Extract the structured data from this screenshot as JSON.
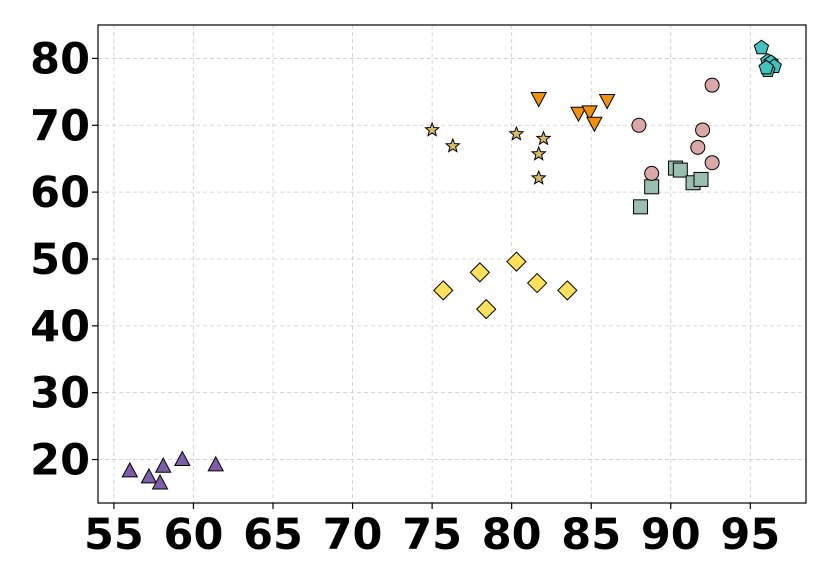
{
  "chart_data": {
    "type": "scatter",
    "title": "",
    "xlabel": "",
    "ylabel": "",
    "xlim": [
      54,
      98.5
    ],
    "ylim": [
      13.5,
      85
    ],
    "grid": true,
    "legend": "none",
    "xticks": [
      55,
      60,
      65,
      70,
      75,
      80,
      85,
      90,
      95
    ],
    "yticks": [
      20,
      30,
      40,
      50,
      60,
      70,
      80
    ],
    "xtick_labels": [
      "55",
      "60",
      "65",
      "70",
      "75",
      "80",
      "85",
      "90",
      "95"
    ],
    "ytick_labels": [
      "20",
      "30",
      "40",
      "50",
      "60",
      "70",
      "80"
    ],
    "series": [
      {
        "name": "triangle-up cluster",
        "marker": "triangle-up",
        "color": "#7b5ea7",
        "points": [
          [
            56.0,
            18.3
          ],
          [
            57.2,
            17.4
          ],
          [
            57.9,
            16.5
          ],
          [
            58.1,
            19.0
          ],
          [
            59.3,
            20.0
          ],
          [
            61.4,
            19.2
          ]
        ]
      },
      {
        "name": "star cluster",
        "marker": "star",
        "color": "#d9b96a",
        "points": [
          [
            75.0,
            69.3
          ],
          [
            76.3,
            66.9
          ],
          [
            80.3,
            68.7
          ],
          [
            81.7,
            65.7
          ],
          [
            82.0,
            68.0
          ],
          [
            81.7,
            62.1
          ]
        ]
      },
      {
        "name": "triangle-down cluster",
        "marker": "triangle-down",
        "color": "#f29111",
        "points": [
          [
            81.7,
            74.0
          ],
          [
            84.2,
            71.8
          ],
          [
            84.9,
            72.0
          ],
          [
            85.2,
            70.3
          ],
          [
            86.0,
            73.7
          ]
        ]
      },
      {
        "name": "diamond cluster",
        "marker": "diamond",
        "color": "#fde15c",
        "points": [
          [
            75.7,
            45.3
          ],
          [
            78.0,
            48.0
          ],
          [
            78.4,
            42.5
          ],
          [
            80.3,
            49.6
          ],
          [
            81.6,
            46.4
          ],
          [
            83.5,
            45.3
          ]
        ]
      },
      {
        "name": "square cluster",
        "marker": "square",
        "color": "#9bbfaf",
        "points": [
          [
            88.1,
            57.8
          ],
          [
            88.8,
            60.8
          ],
          [
            90.3,
            63.6
          ],
          [
            90.6,
            63.3
          ],
          [
            91.4,
            61.4
          ],
          [
            91.9,
            61.9
          ]
        ]
      },
      {
        "name": "circle cluster",
        "marker": "circle",
        "color": "#d9a8a6",
        "points": [
          [
            88.0,
            70.0
          ],
          [
            88.8,
            62.8
          ],
          [
            91.7,
            66.7
          ],
          [
            92.0,
            69.3
          ],
          [
            92.6,
            64.4
          ],
          [
            92.6,
            76.0
          ]
        ]
      },
      {
        "name": "pentagon cluster",
        "marker": "pentagon",
        "color": "#45c2bd",
        "points": [
          [
            95.7,
            81.6
          ],
          [
            96.1,
            79.6
          ],
          [
            96.3,
            79.4
          ],
          [
            96.5,
            78.8
          ],
          [
            96.1,
            78.2
          ],
          [
            96.0,
            78.6
          ]
        ]
      }
    ]
  }
}
